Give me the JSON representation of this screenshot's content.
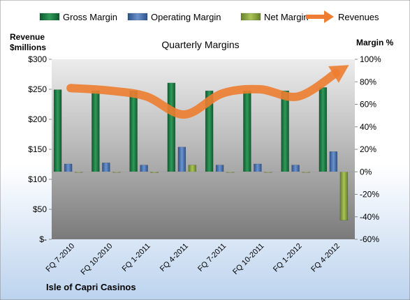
{
  "chart_data": {
    "type": "bar",
    "title": "Quarterly Margins",
    "left_axis_label_line1": "Revenue",
    "left_axis_label_line2": "$millions",
    "right_axis_label": "Margin %",
    "footer": "Isle of Capri Casinos",
    "categories": [
      "FQ 7-2010",
      "FQ 10-2010",
      "FQ 1-2011",
      "FQ 4-2011",
      "FQ 7-2011",
      "FQ 10-2011",
      "FQ 1-2012",
      "FQ 4-2012"
    ],
    "left_axis": {
      "min": 0,
      "max": 300,
      "step": 50,
      "ticks": [
        "$-",
        "$50",
        "$100",
        "$150",
        "$200",
        "$250",
        "$300"
      ]
    },
    "right_axis": {
      "min": -60,
      "max": 100,
      "step": 20,
      "ticks": [
        "-60%",
        "-40%",
        "-20%",
        "0%",
        "20%",
        "40%",
        "60%",
        "80%",
        "100%"
      ]
    },
    "series": [
      {
        "name": "Gross Margin",
        "axis": "right",
        "color": "#1f7a45",
        "values": [
          73,
          72,
          72,
          79,
          72,
          72,
          72,
          75
        ]
      },
      {
        "name": "Operating Margin",
        "axis": "right",
        "color": "#4a72b0",
        "values": [
          7,
          8,
          6,
          22,
          6,
          7,
          6,
          18
        ]
      },
      {
        "name": "Net Margin",
        "axis": "right",
        "color": "#8aa43c",
        "values": [
          -0.5,
          -0.3,
          -0.8,
          6,
          -0.5,
          -0.3,
          -0.5,
          -43
        ]
      },
      {
        "name": "Revenues",
        "axis": "left",
        "color": "#ed7d31",
        "values": [
          252,
          248,
          238,
          208,
          243,
          250,
          238,
          277
        ]
      }
    ],
    "legend_position": "top",
    "grid": false
  }
}
